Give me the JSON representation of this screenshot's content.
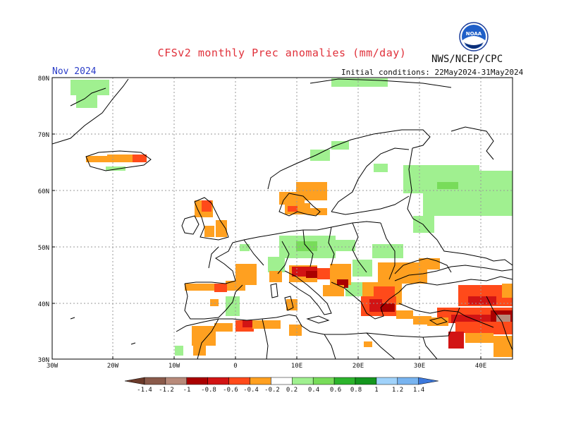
{
  "header": {
    "title": "CFSv2 monthly Prec anomalies (mm/day)",
    "agency": "NWS/NCEP/CPC",
    "month": "Nov 2024",
    "initial_conditions": "Initial conditions: 22May2024-31May2024",
    "logo_text": "NOAA"
  },
  "map": {
    "lat_labels": [
      "80N",
      "70N",
      "60N",
      "50N",
      "40N",
      "30N"
    ],
    "lon_labels": [
      "30W",
      "20W",
      "10W",
      "0",
      "10E",
      "20E",
      "30E",
      "40E"
    ]
  },
  "legend": {
    "labels": [
      "-1.4",
      "-1.2",
      "-1",
      "-0.8",
      "-0.6",
      "-0.4",
      "-0.2",
      "0.2",
      "0.4",
      "0.6",
      "0.8",
      "1",
      "1.2",
      "1.4"
    ],
    "colors": {
      "lt_-1.4": "#6b3a2a",
      "-1.4_-1.2": "#8a5a4a",
      "-1.2_-1": "#b88a7a",
      "-1_-0.8": "#aa0000",
      "-0.8_-0.6": "#d21414",
      "-0.6_-0.4": "#ff4a1a",
      "-0.4_-0.2": "#ffa020",
      "-0.2_0.2": "#ffffff",
      "0.2_0.4": "#a0f090",
      "0.4_0.6": "#78dc5a",
      "0.6_0.8": "#2cb42c",
      "0.8_1": "#14961e",
      "1_1.2": "#a0d2fa",
      "1.2_1.4": "#78b4f0",
      "gt_1.4": "#3c78dc"
    }
  }
}
